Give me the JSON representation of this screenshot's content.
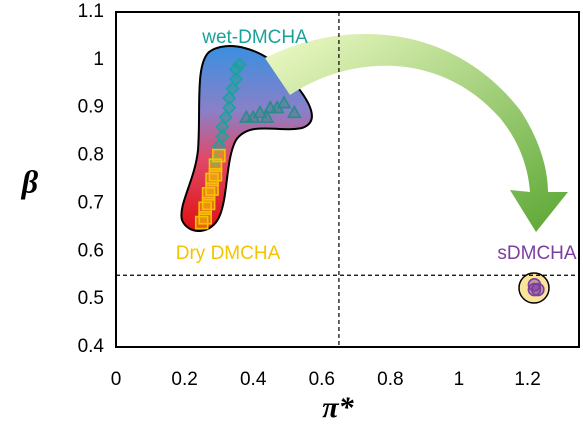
{
  "chart_data": {
    "type": "scatter",
    "xlabel": "π*",
    "ylabel": "β",
    "xlim": [
      0,
      1.35
    ],
    "ylim": [
      0.4,
      1.1
    ],
    "xticks": [
      0,
      0.2,
      0.4,
      0.6,
      0.8,
      1,
      1.2
    ],
    "yticks": [
      0.4,
      0.5,
      0.6,
      0.7,
      0.8,
      0.9,
      1,
      1.1
    ],
    "grid": false,
    "xref": 0.65,
    "yref": 0.55,
    "series": [
      {
        "name": "wet-DMCHA",
        "color": "#1aa39a",
        "marker": "diamond",
        "x": [
          0.29,
          0.3,
          0.31,
          0.31,
          0.32,
          0.33,
          0.33,
          0.34,
          0.35,
          0.35,
          0.36
        ],
        "values": [
          0.79,
          0.82,
          0.84,
          0.86,
          0.88,
          0.9,
          0.92,
          0.94,
          0.96,
          0.98,
          0.99
        ]
      },
      {
        "color": "#2a8c86",
        "marker": "triangle",
        "x": [
          0.38,
          0.4,
          0.42,
          0.44,
          0.45,
          0.47,
          0.49,
          0.52
        ],
        "values": [
          0.88,
          0.88,
          0.89,
          0.88,
          0.9,
          0.9,
          0.91,
          0.89
        ]
      },
      {
        "name": "Dry DMCHA",
        "color": "#f5c400",
        "marker": "square",
        "x": [
          0.25,
          0.26,
          0.26,
          0.27,
          0.27,
          0.28,
          0.28,
          0.29,
          0.29,
          0.3
        ],
        "values": [
          0.66,
          0.67,
          0.69,
          0.7,
          0.72,
          0.73,
          0.75,
          0.76,
          0.78,
          0.8
        ]
      },
      {
        "name": "sDMCHA",
        "color": "#7b3fa0",
        "marker": "circle",
        "x": [
          1.22,
          1.23,
          1.22
        ],
        "values": [
          0.52,
          0.52,
          0.53
        ]
      }
    ]
  }
}
